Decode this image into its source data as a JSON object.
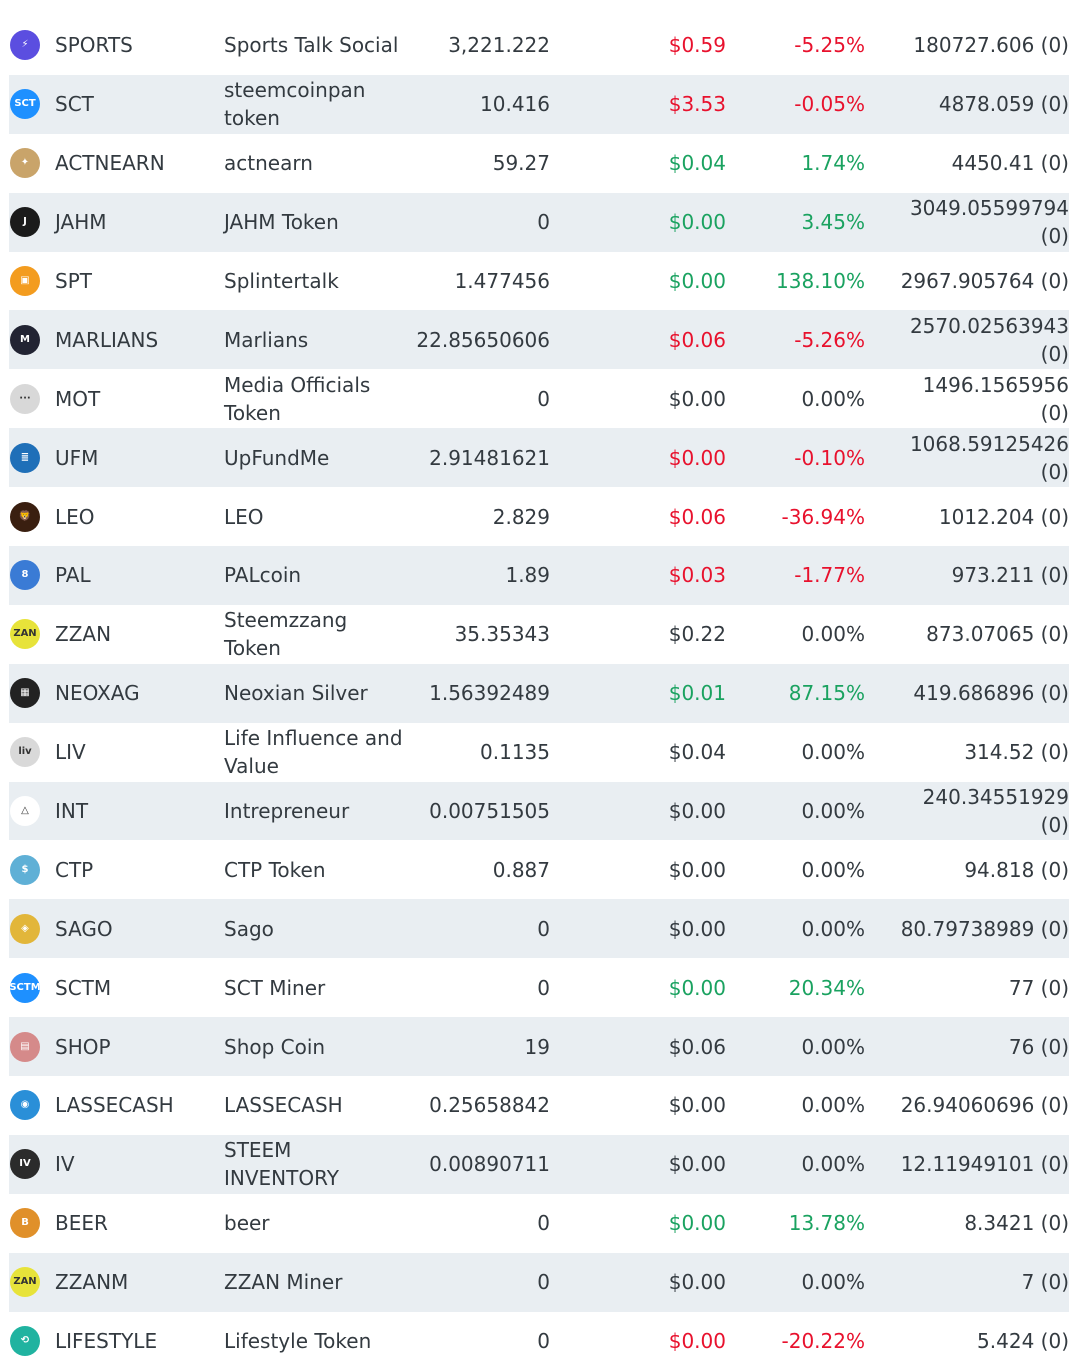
{
  "rows": [
    {
      "icon": "sports-bolt-icon",
      "icon_text": "⚡",
      "icon_color": "#5b4ee0",
      "symbol": "SPORTS",
      "name": "Sports Talk Social",
      "balance": "3,221.222",
      "price": "$0.59",
      "change": "-5.25%",
      "value": "180727.606 (0)",
      "price_color": "red",
      "change_color": "red"
    },
    {
      "icon": "sct-logo-icon",
      "icon_text": "SCT",
      "icon_color": "#1e90ff",
      "symbol": "SCT",
      "name": "steemcoinpan token",
      "balance": "10.416",
      "price": "$3.53",
      "change": "-0.05%",
      "value": "4878.059 (0)",
      "price_color": "red",
      "change_color": "red"
    },
    {
      "icon": "actnearn-logo-icon",
      "icon_text": "✦",
      "icon_color": "#c9a46a",
      "symbol": "ACTNEARN",
      "name": "actnearn",
      "balance": "59.27",
      "price": "$0.04",
      "change": "1.74%",
      "value": "4450.41 (0)",
      "price_color": "green",
      "change_color": "green"
    },
    {
      "icon": "jahm-logo-icon",
      "icon_text": "J",
      "icon_color": "#1b1b1b",
      "symbol": "JAHM",
      "name": "JAHM Token",
      "balance": "0",
      "price": "$0.00",
      "change": "3.45%",
      "value": "3049.05599794 (0)",
      "price_color": "green",
      "change_color": "green"
    },
    {
      "icon": "spt-logo-icon",
      "icon_text": "▣",
      "icon_color": "#f39c1f",
      "symbol": "SPT",
      "name": "Splintertalk",
      "balance": "1.477456",
      "price": "$0.00",
      "change": "138.10%",
      "value": "2967.905764 (0)",
      "price_color": "green",
      "change_color": "green"
    },
    {
      "icon": "marlians-logo-icon",
      "icon_text": "M",
      "icon_color": "#222433",
      "symbol": "MARLIANS",
      "name": "Marlians",
      "balance": "22.85650606",
      "price": "$0.06",
      "change": "-5.26%",
      "value": "2570.02563943 (0)",
      "price_color": "red",
      "change_color": "red"
    },
    {
      "icon": "mot-logo-icon",
      "icon_text": "···",
      "icon_color": "#d8d8d8",
      "symbol": "MOT",
      "name": "Media Officials Token",
      "balance": "0",
      "price": "$0.00",
      "change": "0.00%",
      "value": "1496.1565956 (0)",
      "price_color": "neutral",
      "change_color": "neutral"
    },
    {
      "icon": "ufm-logo-icon",
      "icon_text": "≣",
      "icon_color": "#1f6fb8",
      "symbol": "UFM",
      "name": "UpFundMe",
      "balance": "2.91481621",
      "price": "$0.00",
      "change": "-0.10%",
      "value": "1068.59125426 (0)",
      "price_color": "red",
      "change_color": "red"
    },
    {
      "icon": "leo-lion-icon",
      "icon_text": "🦁",
      "icon_color": "#3a1f10",
      "symbol": "LEO",
      "name": "LEO",
      "balance": "2.829",
      "price": "$0.06",
      "change": "-36.94%",
      "value": "1012.204 (0)",
      "price_color": "red",
      "change_color": "red"
    },
    {
      "icon": "pal-logo-icon",
      "icon_text": "8",
      "icon_color": "#3a7bd5",
      "symbol": "PAL",
      "name": "PALcoin",
      "balance": "1.89",
      "price": "$0.03",
      "change": "-1.77%",
      "value": "973.211 (0)",
      "price_color": "red",
      "change_color": "red"
    },
    {
      "icon": "zzan-logo-icon",
      "icon_text": "ZAN",
      "icon_color": "#e7e33a",
      "symbol": "ZZAN",
      "name": "Steemzzang Token",
      "balance": "35.35343",
      "price": "$0.22",
      "change": "0.00%",
      "value": "873.07065 (0)",
      "price_color": "neutral",
      "change_color": "neutral"
    },
    {
      "icon": "neoxag-grid-icon",
      "icon_text": "▦",
      "icon_color": "#222222",
      "symbol": "NEOXAG",
      "name": "Neoxian Silver",
      "balance": "1.56392489",
      "price": "$0.01",
      "change": "87.15%",
      "value": "419.686896 (0)",
      "price_color": "green",
      "change_color": "green"
    },
    {
      "icon": "liv-logo-icon",
      "icon_text": "liv",
      "icon_color": "#d9d9d9",
      "symbol": "LIV",
      "name": "Life Influence and Value",
      "balance": "0.1135",
      "price": "$0.04",
      "change": "0.00%",
      "value": "314.52 (0)",
      "price_color": "neutral",
      "change_color": "neutral"
    },
    {
      "icon": "int-triangle-icon",
      "icon_text": "△",
      "icon_color": "#ffffff",
      "symbol": "INT",
      "name": "Intrepreneur",
      "balance": "0.00751505",
      "price": "$0.00",
      "change": "0.00%",
      "value": "240.34551929 (0)",
      "price_color": "neutral",
      "change_color": "neutral"
    },
    {
      "icon": "ctp-logo-icon",
      "icon_text": "$",
      "icon_color": "#5fb0d6",
      "symbol": "CTP",
      "name": "CTP Token",
      "balance": "0.887",
      "price": "$0.00",
      "change": "0.00%",
      "value": "94.818 (0)",
      "price_color": "neutral",
      "change_color": "neutral"
    },
    {
      "icon": "sago-shield-icon",
      "icon_text": "◈",
      "icon_color": "#e2b63a",
      "symbol": "SAGO",
      "name": "Sago",
      "balance": "0",
      "price": "$0.00",
      "change": "0.00%",
      "value": "80.79738989 (0)",
      "price_color": "neutral",
      "change_color": "neutral"
    },
    {
      "icon": "sctm-logo-icon",
      "icon_text": "SCTM",
      "icon_color": "#1e90ff",
      "symbol": "SCTM",
      "name": "SCT Miner",
      "balance": "0",
      "price": "$0.00",
      "change": "20.34%",
      "value": "77 (0)",
      "price_color": "green",
      "change_color": "green"
    },
    {
      "icon": "shop-logo-icon",
      "icon_text": "▤",
      "icon_color": "#d58a8a",
      "symbol": "SHOP",
      "name": "Shop Coin",
      "balance": "19",
      "price": "$0.06",
      "change": "0.00%",
      "value": "76 (0)",
      "price_color": "neutral",
      "change_color": "neutral"
    },
    {
      "icon": "lassecash-logo-icon",
      "icon_text": "◉",
      "icon_color": "#2a8fd8",
      "symbol": "LASSECASH",
      "name": "LASSECASH",
      "balance": "0.25658842",
      "price": "$0.00",
      "change": "0.00%",
      "value": "26.94060696 (0)",
      "price_color": "neutral",
      "change_color": "neutral"
    },
    {
      "icon": "iv-logo-icon",
      "icon_text": "IV",
      "icon_color": "#2b2b2b",
      "symbol": "IV",
      "name": "STEEM INVENTORY",
      "balance": "0.00890711",
      "price": "$0.00",
      "change": "0.00%",
      "value": "12.11949101 (0)",
      "price_color": "neutral",
      "change_color": "neutral"
    },
    {
      "icon": "beer-logo-icon",
      "icon_text": "B",
      "icon_color": "#e0902a",
      "symbol": "BEER",
      "name": "beer",
      "balance": "0",
      "price": "$0.00",
      "change": "13.78%",
      "value": "8.3421 (0)",
      "price_color": "green",
      "change_color": "green"
    },
    {
      "icon": "zzanm-logo-icon",
      "icon_text": "ZAN",
      "icon_color": "#e7e33a",
      "symbol": "ZZANM",
      "name": "ZZAN Miner",
      "balance": "0",
      "price": "$0.00",
      "change": "0.00%",
      "value": "7 (0)",
      "price_color": "neutral",
      "change_color": "neutral"
    },
    {
      "icon": "lifestyle-logo-icon",
      "icon_text": "⟲",
      "icon_color": "#20b3a0",
      "symbol": "LIFESTYLE",
      "name": "Lifestyle Token",
      "balance": "0",
      "price": "$0.00",
      "change": "-20.22%",
      "value": "5.424 (0)",
      "price_color": "red",
      "change_color": "red"
    }
  ]
}
